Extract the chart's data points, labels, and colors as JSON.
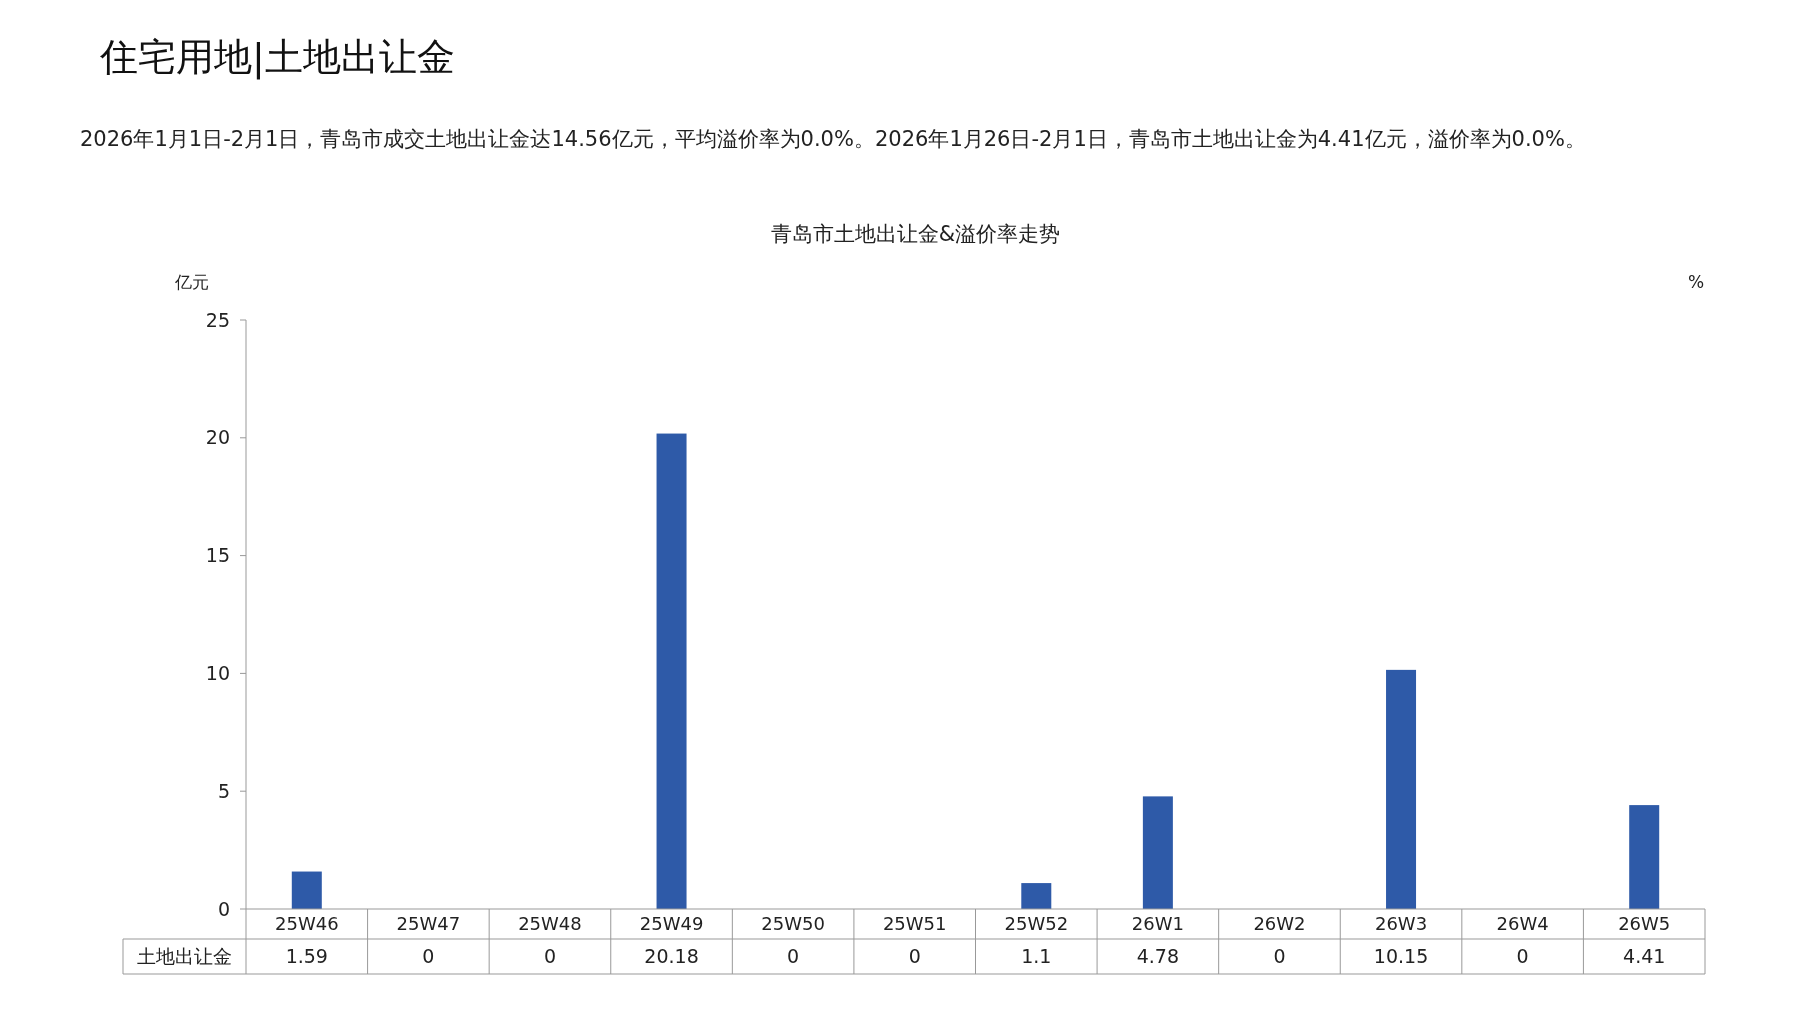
{
  "chart_data": {
    "type": "bar",
    "title": "住宅用地|土地出让金",
    "subtitle": "青岛市土地出让金&溢价率走势",
    "annotations": [
      "2026年1月1日-2月1日，青岛市成交土地出让金达14.56亿元，平均溢价率为0.0%。2026年1月26日-2月1日，青岛市土地出让金为4.41亿元，溢价率为0.0%。"
    ],
    "ylabel": "亿元",
    "y2label": "%",
    "categories": [
      "25W46",
      "25W47",
      "25W48",
      "25W49",
      "25W50",
      "25W51",
      "25W52",
      "26W1",
      "26W2",
      "26W3",
      "26W4",
      "26W5"
    ],
    "series": [
      {
        "name": "土地出让金",
        "color": "#2e5aa8",
        "values": [
          1.59,
          0,
          0,
          20.18,
          0,
          0,
          1.1,
          4.78,
          0,
          10.15,
          0,
          4.41
        ]
      }
    ],
    "ylim": [
      0,
      25
    ],
    "yticks": [
      0,
      5,
      10,
      15,
      20,
      25
    ],
    "data_labels": true,
    "grid": false
  }
}
